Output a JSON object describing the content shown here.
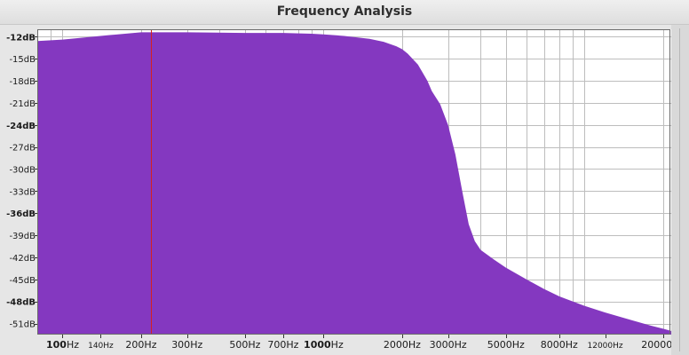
{
  "window": {
    "title": "Frequency Analysis"
  },
  "chart_data": {
    "type": "area",
    "title": "Frequency Analysis",
    "x_scale": "log",
    "xlim": [
      80,
      21500
    ],
    "ylim": [
      -52.5,
      -11.0
    ],
    "y_ticks": [
      {
        "value": -12,
        "label": "-12dB",
        "bold": true
      },
      {
        "value": -15,
        "label": "-15dB",
        "bold": false
      },
      {
        "value": -18,
        "label": "-18dB",
        "bold": false
      },
      {
        "value": -21,
        "label": "-21dB",
        "bold": false
      },
      {
        "value": -24,
        "label": "-24dB",
        "bold": true
      },
      {
        "value": -27,
        "label": "-27dB",
        "bold": false
      },
      {
        "value": -30,
        "label": "-30dB",
        "bold": false
      },
      {
        "value": -33,
        "label": "-33dB",
        "bold": false
      },
      {
        "value": -36,
        "label": "-36dB",
        "bold": true
      },
      {
        "value": -39,
        "label": "-39dB",
        "bold": false
      },
      {
        "value": -42,
        "label": "-42dB",
        "bold": false
      },
      {
        "value": -45,
        "label": "-45dB",
        "bold": false
      },
      {
        "value": -48,
        "label": "-48dB",
        "bold": true
      },
      {
        "value": -51,
        "label": "-51dB",
        "bold": false
      }
    ],
    "x_ticks": [
      {
        "value": 100,
        "num": "100",
        "unit": "Hz",
        "style": "bold"
      },
      {
        "value": 140,
        "num": "140",
        "unit": "Hz",
        "style": "small"
      },
      {
        "value": 200,
        "num": "200",
        "unit": "Hz",
        "style": "normal"
      },
      {
        "value": 300,
        "num": "300",
        "unit": "Hz",
        "style": "normal"
      },
      {
        "value": 500,
        "num": "500",
        "unit": "Hz",
        "style": "normal"
      },
      {
        "value": 700,
        "num": "700",
        "unit": "Hz",
        "style": "normal"
      },
      {
        "value": 1000,
        "num": "1000",
        "unit": "Hz",
        "style": "bold"
      },
      {
        "value": 2000,
        "num": "2000",
        "unit": "Hz",
        "style": "normal"
      },
      {
        "value": 3000,
        "num": "3000",
        "unit": "Hz",
        "style": "normal"
      },
      {
        "value": 5000,
        "num": "5000",
        "unit": "Hz",
        "style": "normal"
      },
      {
        "value": 8000,
        "num": "8000",
        "unit": "Hz",
        "style": "normal"
      },
      {
        "value": 12000,
        "num": "12000",
        "unit": "Hz",
        "style": "small"
      },
      {
        "value": 20000,
        "num": "20000",
        "unit": "Hz",
        "style": "normal"
      }
    ],
    "x_grid": [
      90,
      100,
      200,
      300,
      400,
      500,
      600,
      700,
      800,
      900,
      1000,
      2000,
      3000,
      4000,
      5000,
      6000,
      7000,
      8000,
      9000,
      10000,
      20000
    ],
    "marker_hz": 218,
    "series": [
      {
        "fill": "#8438c0",
        "x": [
          80,
          100,
          150,
          200,
          300,
          500,
          700,
          900,
          1000,
          1200,
          1500,
          1700,
          1900,
          2000,
          2100,
          2300,
          2500,
          2600,
          2800,
          3000,
          3200,
          3400,
          3600,
          3800,
          4000,
          4500,
          5000,
          6000,
          7000,
          8000,
          10000,
          12000,
          15000,
          18000,
          20000,
          21500
        ],
        "y": [
          -12.6,
          -12.4,
          -11.8,
          -11.4,
          -11.4,
          -11.5,
          -11.5,
          -11.6,
          -11.7,
          -11.9,
          -12.3,
          -12.7,
          -13.3,
          -13.7,
          -14.3,
          -15.8,
          -18.0,
          -19.4,
          -21.2,
          -24.0,
          -28.0,
          -33.0,
          -37.5,
          -39.8,
          -41.0,
          -42.3,
          -43.4,
          -45.0,
          -46.3,
          -47.3,
          -48.6,
          -49.5,
          -50.5,
          -51.3,
          -51.7,
          -52.0
        ]
      }
    ],
    "colors": {
      "background": "#ffffff",
      "grid": "#bdbdbd",
      "fill": "#8438c0",
      "marker": "#d62020",
      "frame": "#6a6a6a"
    }
  }
}
